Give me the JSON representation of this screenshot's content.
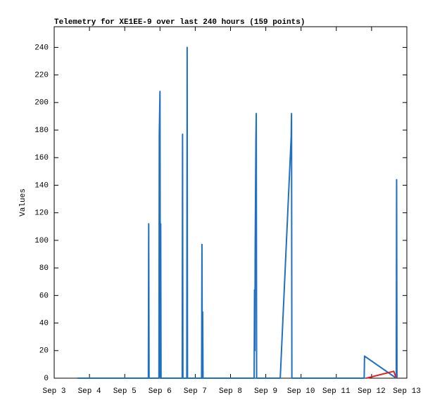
{
  "chart_data": {
    "type": "line",
    "title": "Telemetry for XE1EE-9 over last 240 hours (159 points)",
    "y_label": "Values",
    "xlim": [
      3,
      13
    ],
    "xticks": [
      {
        "value": 3,
        "label": "Sep 3"
      },
      {
        "value": 4,
        "label": "Sep 4"
      },
      {
        "value": 5,
        "label": "Sep 5"
      },
      {
        "value": 6,
        "label": "Sep 6"
      },
      {
        "value": 7,
        "label": "Sep 7"
      },
      {
        "value": 8,
        "label": "Sep 8"
      },
      {
        "value": 9,
        "label": "Sep 9"
      },
      {
        "value": 10,
        "label": "Sep 10"
      },
      {
        "value": 11,
        "label": "Sep 11"
      },
      {
        "value": 12,
        "label": "Sep 12"
      },
      {
        "value": 13,
        "label": "Sep 13"
      }
    ],
    "ylim": [
      0,
      255
    ],
    "yticks": [
      0,
      20,
      40,
      60,
      80,
      100,
      120,
      140,
      160,
      180,
      200,
      220,
      240
    ],
    "grid": false,
    "series": [
      {
        "color": "#1f6fc5",
        "x": [
          3.66,
          5.67,
          5.68,
          5.69,
          5.97,
          5.98,
          6.0,
          6.01,
          6.02,
          6.03,
          6.63,
          6.64,
          6.65,
          6.76,
          6.77,
          6.78,
          7.18,
          7.19,
          7.2,
          7.21,
          7.22,
          8.67,
          8.68,
          8.69,
          8.7,
          8.71,
          8.72,
          8.73,
          8.74,
          9.41,
          9.72,
          9.73,
          9.74,
          11.79,
          11.8,
          12.7,
          12.71,
          12.72
        ],
        "values": [
          0,
          0,
          112,
          0,
          0,
          177,
          208,
          0,
          112,
          0,
          0,
          177,
          0,
          0,
          240,
          0,
          0,
          97,
          0,
          48,
          0,
          0,
          64,
          20,
          96,
          135,
          173,
          192,
          0,
          0,
          175,
          192,
          0,
          0,
          16,
          0,
          144,
          0
        ]
      },
      {
        "color": "#e02020",
        "x": [
          11.85,
          12.63,
          12.7
        ],
        "values": [
          0,
          5,
          0
        ]
      }
    ]
  }
}
